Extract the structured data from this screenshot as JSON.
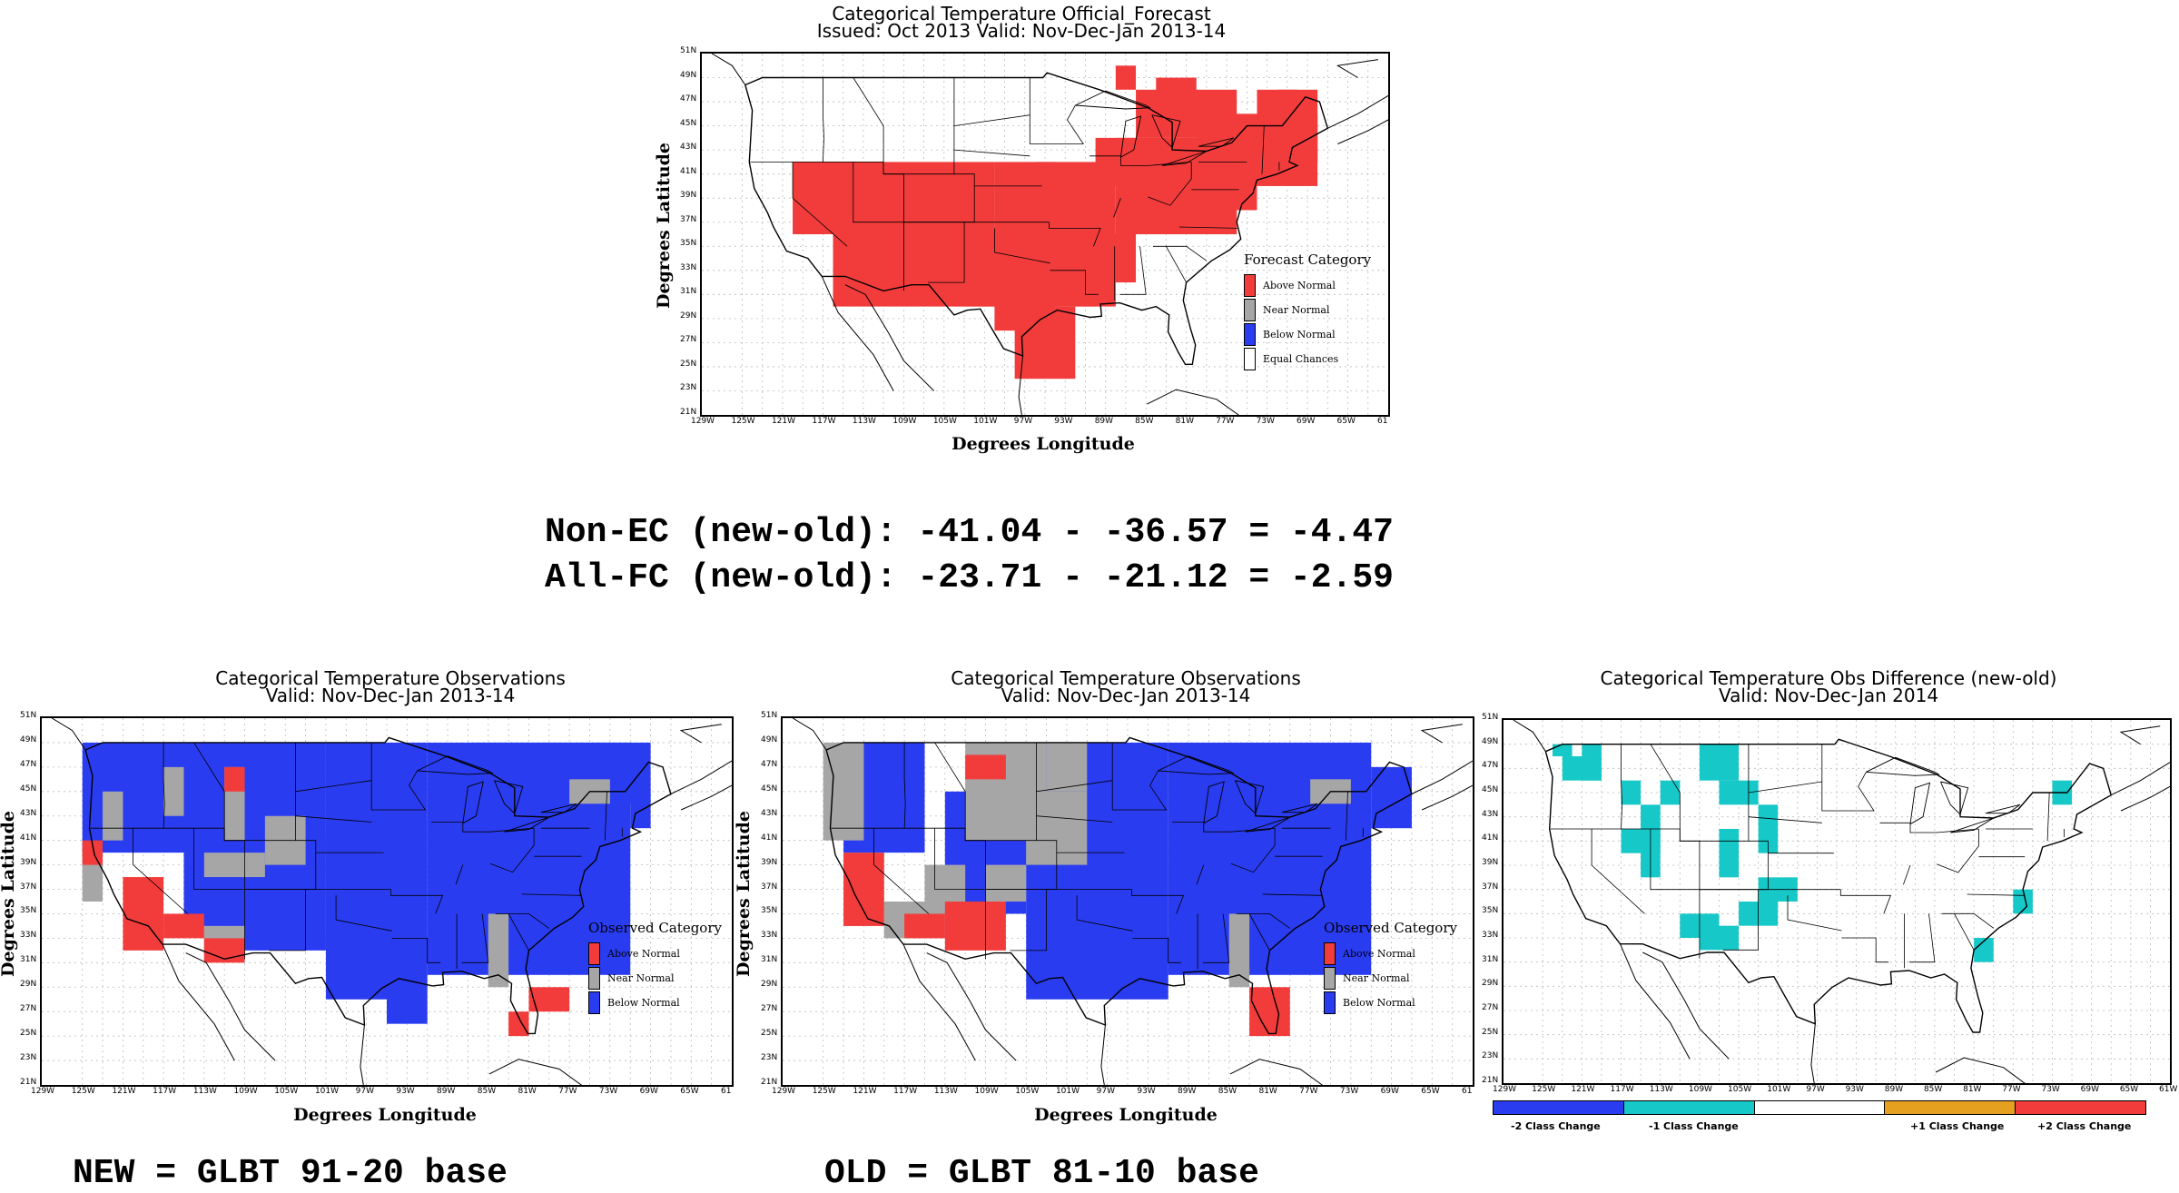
{
  "top_panel": {
    "title1": "Categorical Temperature Official_Forecast",
    "title2": "Issued: Oct 2013 Valid: Nov-Dec-Jan 2013-14",
    "ylabel": "Degrees Latitude",
    "xlabel": "Degrees Longitude",
    "legend_title": "Forecast Category",
    "legend": [
      "Above Normal",
      "Near Normal",
      "Below Normal",
      "Equal Chances"
    ]
  },
  "stats": {
    "line1": "Non-EC (new-old): -41.04 - -36.57 = -4.47",
    "line2": "All-FC (new-old): -23.71 - -21.12 = -2.59"
  },
  "left_panel": {
    "title1": "Categorical Temperature Observations",
    "title2": "Valid: Nov-Dec-Jan 2013-14",
    "ylabel": "Degrees Latitude",
    "xlabel": "Degrees Longitude",
    "legend_title": "Observed Category",
    "legend": [
      "Above Normal",
      "Near Normal",
      "Below Normal"
    ],
    "caption": "NEW = GLBT 91-20 base"
  },
  "mid_panel": {
    "title1": "Categorical Temperature Observations",
    "title2": "Valid: Nov-Dec-Jan 2013-14",
    "ylabel": "Degrees Latitude",
    "xlabel": "Degrees Longitude",
    "legend_title": "Observed Category",
    "legend": [
      "Above Normal",
      "Near Normal",
      "Below Normal"
    ],
    "caption": "OLD = GLBT 81-10 base"
  },
  "right_panel": {
    "title1": "Categorical Temperature Obs Difference (new-old)",
    "title2": "Valid: Nov-Dec-Jan 2014",
    "colorbar": [
      "-2 Class Change",
      "-1 Class Change",
      "+1 Class Change",
      "+2 Class Change"
    ]
  },
  "lat_ticks": [
    "51N",
    "49N",
    "47N",
    "45N",
    "43N",
    "41N",
    "39N",
    "37N",
    "35N",
    "33N",
    "31N",
    "29N",
    "27N",
    "25N",
    "23N",
    "21N"
  ],
  "lon_ticks": [
    "129W",
    "125W",
    "121W",
    "117W",
    "113W",
    "109W",
    "105W",
    "101W",
    "97W",
    "93W",
    "89W",
    "85W",
    "81W",
    "77W",
    "73W",
    "69W",
    "65W",
    "61"
  ],
  "lon_ticks_right": [
    "129W",
    "125W",
    "121W",
    "117W",
    "113W",
    "109W",
    "105W",
    "101W",
    "97W",
    "93W",
    "89W",
    "85W",
    "81W",
    "77W",
    "73W",
    "69W",
    "65W",
    "61W"
  ],
  "colors": {
    "above": "#f23c3c",
    "near": "#a6a6a6",
    "below": "#2a3cf0",
    "ec": "#ffffff",
    "minus2": "#2a3cf0",
    "minus1": "#17c8c8",
    "zero": "#ffffff",
    "plus1": "#e6a020",
    "plus2": "#f23c3c"
  }
}
